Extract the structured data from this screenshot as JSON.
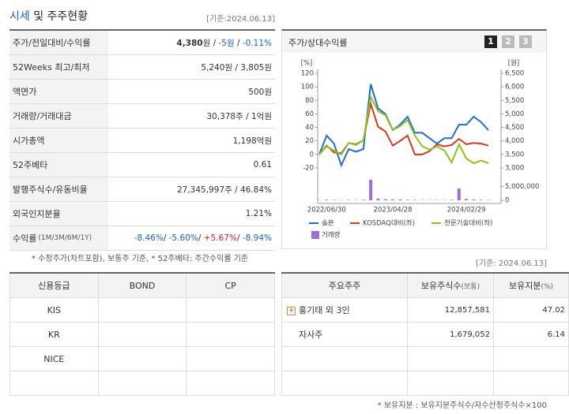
{
  "header": {
    "title_highlight": "시세",
    "title_rest": "및 주주현황",
    "as_of": "[기준:2024.06.13]"
  },
  "summary": {
    "rows": [
      {
        "label": "주가/전일대비/수익률",
        "parts": [
          {
            "text": "4,380",
            "weight": "bold"
          },
          {
            "text": "원 / "
          },
          {
            "text": "-5원",
            "color": "#1a5fd0"
          },
          {
            "text": " / "
          },
          {
            "text": "-0.11%",
            "color": "#1a5fd0"
          }
        ]
      },
      {
        "label": "52Weeks 최고/최저",
        "parts": [
          {
            "text": "5,240원 / 3,805원"
          }
        ]
      },
      {
        "label": "액면가",
        "parts": [
          {
            "text": "500원"
          }
        ]
      },
      {
        "label": "거래량/거래대금",
        "parts": [
          {
            "text": "30,378주 / 1억원"
          }
        ]
      },
      {
        "label": "시가총액",
        "parts": [
          {
            "text": "1,198억원"
          }
        ]
      },
      {
        "label": "52주베타",
        "parts": [
          {
            "text": "0.61"
          }
        ]
      },
      {
        "label": "발행주식수/유동비율",
        "parts": [
          {
            "text": "27,345,997주 / 46.84%"
          }
        ]
      },
      {
        "label": "외국인지분율",
        "parts": [
          {
            "text": "1.21%"
          }
        ]
      },
      {
        "label": "수익률",
        "label_sub": "(1M/3M/6M/1Y)",
        "parts": [
          {
            "text": "-8.46%",
            "color": "#1a5fd0"
          },
          {
            "text": "/ "
          },
          {
            "text": "-5.60%",
            "color": "#1a5fd0"
          },
          {
            "text": "/ "
          },
          {
            "text": "+5.67%",
            "color": "#e02020"
          },
          {
            "text": "/ "
          },
          {
            "text": "-8.94%",
            "color": "#1a5fd0"
          }
        ]
      }
    ],
    "note": "* 수정주가(차트포함), 보통주 기준, * 52주베타: 주간수익률 기준"
  },
  "chart_data": {
    "type": "line",
    "title": "주가/상대수익률",
    "tabs": [
      "1",
      "2",
      "3"
    ],
    "categories": [
      null,
      "2022/06/30",
      null,
      null,
      null,
      null,
      null,
      null,
      null,
      null,
      "2023/04/28",
      null,
      null,
      null,
      null,
      null,
      null,
      null,
      null,
      null,
      "2024/02/29",
      null,
      null,
      null
    ],
    "y_unit": "[%]",
    "ylim": [
      -20,
      120
    ],
    "yticks": [
      -20,
      0,
      20,
      40,
      60,
      80,
      100,
      120
    ],
    "y2_unit": "[원]",
    "y2lim": [
      3000,
      6500
    ],
    "y2ticks": [
      {
        "value": 3000,
        "label": "3,000"
      },
      {
        "value": 3500,
        "label": "3,500"
      },
      {
        "value": 4000,
        "label": "4,000"
      },
      {
        "value": 4500,
        "label": "4,500"
      },
      {
        "value": 5000,
        "label": "5,000"
      },
      {
        "value": 5500,
        "label": "5,500"
      },
      {
        "value": 6000,
        "label": "6,000"
      },
      {
        "value": 6500,
        "label": "6,500"
      }
    ],
    "volume_lim": [
      0,
      7500000
    ],
    "volume_ticks": [
      0,
      {
        "value": 5000000,
        "label": "5,000,000"
      }
    ],
    "series": [
      {
        "name": "솔본",
        "color": "#1f6fd0",
        "axis": "y2",
        "values": [
          3500,
          4200,
          3900,
          3100,
          3700,
          3600,
          3700,
          6100,
          5200,
          5000,
          4400,
          4600,
          4900,
          4300,
          4300,
          4100,
          3900,
          4100,
          4100,
          4600,
          4600,
          4900,
          4700,
          4400
        ]
      },
      {
        "name": "KOSDAQ대비(좌)",
        "color": "#d9381e",
        "values": [
          0,
          13,
          3,
          2,
          17,
          15,
          21,
          75,
          41,
          34,
          13,
          20,
          28,
          0,
          0,
          5,
          15,
          12,
          14,
          23,
          15,
          17,
          16,
          13
        ]
      },
      {
        "name": "전문기술대비(좌)",
        "color": "#8fc31f",
        "values": [
          0,
          12,
          6,
          0,
          17,
          14,
          21,
          85,
          64,
          58,
          36,
          42,
          51,
          28,
          12,
          7,
          12,
          6,
          -12,
          15,
          -6,
          -13,
          -9,
          -13
        ]
      },
      {
        "name": "거래량",
        "color": "#9b6fd6",
        "type": "bar",
        "axis": "volume",
        "values": [
          100000,
          200000,
          150000,
          100000,
          150000,
          100000,
          200000,
          7500000,
          600000,
          400000,
          300000,
          300000,
          200000,
          150000,
          100000,
          100000,
          100000,
          100000,
          200000,
          4300000,
          500000,
          300000,
          200000,
          150000
        ]
      }
    ]
  },
  "rating_table": {
    "header": [
      "신용등급",
      "BOND",
      "CP"
    ],
    "rows": [
      "KIS",
      "KR",
      "NICE"
    ]
  },
  "holders": {
    "as_of": "[기준: 2024.06.13]",
    "header": [
      {
        "text": "주요주주"
      },
      {
        "text": "보유주식수",
        "sub": "(보통)"
      },
      {
        "text": "보유지분",
        "sub": "(%)"
      }
    ],
    "rows": [
      {
        "name": "홍기태 외 3인",
        "shares": "12,857,581",
        "pct": "47.02"
      },
      {
        "name": "자사주",
        "shares": "1,679,052",
        "pct": "6.14"
      }
    ],
    "note": "* 보유지분 : 보유지분주식수/자수산정주식수×100"
  }
}
